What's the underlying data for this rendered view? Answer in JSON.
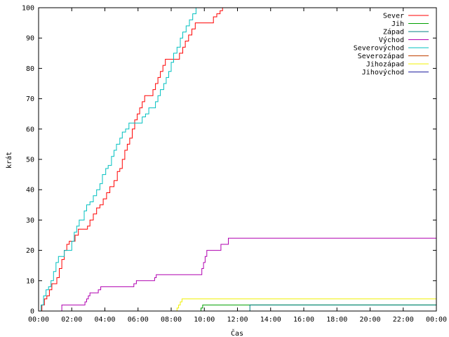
{
  "chart_data": {
    "type": "line",
    "xlabel": "Čas",
    "ylabel": "krát",
    "xlim": [
      0,
      24
    ],
    "ylim": [
      0,
      100
    ],
    "xticks": [
      {
        "value": 0,
        "label": "00:00"
      },
      {
        "value": 2,
        "label": "02:00"
      },
      {
        "value": 4,
        "label": "04:00"
      },
      {
        "value": 6,
        "label": "06:00"
      },
      {
        "value": 8,
        "label": "08:00"
      },
      {
        "value": 10,
        "label": "10:00"
      },
      {
        "value": 12,
        "label": "12:00"
      },
      {
        "value": 14,
        "label": "14:00"
      },
      {
        "value": 16,
        "label": "16:00"
      },
      {
        "value": 18,
        "label": "18:00"
      },
      {
        "value": 20,
        "label": "20:00"
      },
      {
        "value": 22,
        "label": "22:00"
      },
      {
        "value": 24,
        "label": "00:00"
      }
    ],
    "yticks": [
      {
        "value": 0,
        "label": "0"
      },
      {
        "value": 10,
        "label": "10"
      },
      {
        "value": 20,
        "label": "20"
      },
      {
        "value": 30,
        "label": "30"
      },
      {
        "value": 40,
        "label": "40"
      },
      {
        "value": 50,
        "label": "50"
      },
      {
        "value": 60,
        "label": "60"
      },
      {
        "value": 70,
        "label": "70"
      },
      {
        "value": 80,
        "label": "80"
      },
      {
        "value": 90,
        "label": "90"
      },
      {
        "value": 100,
        "label": "100"
      }
    ],
    "grid": false,
    "legend": "top-right",
    "step": true,
    "series": [
      {
        "name": "Sever",
        "color": "#ff0000",
        "points": [
          [
            0,
            0
          ],
          [
            0.2,
            2
          ],
          [
            0.35,
            4
          ],
          [
            0.5,
            5
          ],
          [
            0.65,
            7
          ],
          [
            0.8,
            9
          ],
          [
            0.95,
            9
          ],
          [
            1.1,
            11
          ],
          [
            1.25,
            14
          ],
          [
            1.4,
            17
          ],
          [
            1.55,
            20
          ],
          [
            1.7,
            22
          ],
          [
            1.85,
            23
          ],
          [
            2.0,
            23
          ],
          [
            2.2,
            25
          ],
          [
            2.4,
            27
          ],
          [
            2.7,
            27
          ],
          [
            2.95,
            28
          ],
          [
            3.1,
            30
          ],
          [
            3.3,
            32
          ],
          [
            3.5,
            34
          ],
          [
            3.7,
            35
          ],
          [
            3.9,
            37
          ],
          [
            4.1,
            39
          ],
          [
            4.3,
            41
          ],
          [
            4.55,
            43
          ],
          [
            4.75,
            46
          ],
          [
            4.9,
            47
          ],
          [
            5.05,
            50
          ],
          [
            5.2,
            53
          ],
          [
            5.35,
            55
          ],
          [
            5.5,
            57
          ],
          [
            5.65,
            60
          ],
          [
            5.8,
            63
          ],
          [
            5.95,
            65
          ],
          [
            6.1,
            67
          ],
          [
            6.25,
            69
          ],
          [
            6.4,
            71
          ],
          [
            6.75,
            71
          ],
          [
            6.9,
            73
          ],
          [
            7.05,
            75
          ],
          [
            7.2,
            77
          ],
          [
            7.35,
            79
          ],
          [
            7.5,
            81
          ],
          [
            7.65,
            83
          ],
          [
            7.8,
            83
          ],
          [
            8.0,
            83
          ],
          [
            8.3,
            83
          ],
          [
            8.5,
            85
          ],
          [
            8.7,
            87
          ],
          [
            8.85,
            89
          ],
          [
            9.05,
            91
          ],
          [
            9.25,
            93
          ],
          [
            9.45,
            95
          ],
          [
            9.9,
            95
          ],
          [
            10.4,
            95
          ],
          [
            10.55,
            97
          ],
          [
            10.75,
            98
          ],
          [
            10.95,
            99
          ],
          [
            11.1,
            100
          ],
          [
            11.3,
            100
          ]
        ]
      },
      {
        "name": "Jih",
        "color": "#00a000",
        "points": [
          [
            0,
            0
          ],
          [
            9.75,
            0
          ],
          [
            9.8,
            1
          ],
          [
            9.9,
            2
          ],
          [
            24,
            2
          ]
        ]
      },
      {
        "name": "Západ",
        "color": "#008080",
        "points": [
          [
            0,
            0
          ],
          [
            12.7,
            0
          ],
          [
            12.75,
            2
          ],
          [
            24,
            2
          ]
        ]
      },
      {
        "name": "Východ",
        "color": "#b000b0",
        "points": [
          [
            0,
            0
          ],
          [
            1.35,
            0
          ],
          [
            1.4,
            2
          ],
          [
            2.7,
            2
          ],
          [
            2.8,
            3
          ],
          [
            2.9,
            4
          ],
          [
            3.0,
            5
          ],
          [
            3.1,
            6
          ],
          [
            3.5,
            6
          ],
          [
            3.6,
            7
          ],
          [
            3.75,
            8
          ],
          [
            5.6,
            8
          ],
          [
            5.75,
            9
          ],
          [
            5.9,
            10
          ],
          [
            6.9,
            10
          ],
          [
            7.0,
            11
          ],
          [
            7.1,
            12
          ],
          [
            9.75,
            12
          ],
          [
            9.85,
            14
          ],
          [
            9.95,
            16
          ],
          [
            10.05,
            18
          ],
          [
            10.15,
            20
          ],
          [
            10.9,
            20
          ],
          [
            11.0,
            22
          ],
          [
            11.35,
            22
          ],
          [
            11.45,
            24
          ],
          [
            24,
            24
          ]
        ]
      },
      {
        "name": "Severovýchod",
        "color": "#00c0c0",
        "points": [
          [
            0,
            0
          ],
          [
            0.15,
            2
          ],
          [
            0.3,
            5
          ],
          [
            0.45,
            7
          ],
          [
            0.6,
            8
          ],
          [
            0.75,
            10
          ],
          [
            0.9,
            13
          ],
          [
            1.05,
            16
          ],
          [
            1.2,
            18
          ],
          [
            1.4,
            18
          ],
          [
            1.55,
            20
          ],
          [
            1.85,
            20
          ],
          [
            2.0,
            23
          ],
          [
            2.15,
            26
          ],
          [
            2.3,
            28
          ],
          [
            2.45,
            30
          ],
          [
            2.6,
            30
          ],
          [
            2.75,
            33
          ],
          [
            2.9,
            35
          ],
          [
            3.1,
            36
          ],
          [
            3.3,
            38
          ],
          [
            3.5,
            40
          ],
          [
            3.7,
            42
          ],
          [
            3.85,
            45
          ],
          [
            4.05,
            47
          ],
          [
            4.2,
            48
          ],
          [
            4.4,
            51
          ],
          [
            4.55,
            53
          ],
          [
            4.7,
            55
          ],
          [
            4.9,
            57
          ],
          [
            5.05,
            59
          ],
          [
            5.25,
            60
          ],
          [
            5.45,
            62
          ],
          [
            5.9,
            62
          ],
          [
            6.1,
            62
          ],
          [
            6.25,
            64
          ],
          [
            6.45,
            65
          ],
          [
            6.65,
            67
          ],
          [
            6.9,
            67
          ],
          [
            7.05,
            69
          ],
          [
            7.2,
            71
          ],
          [
            7.35,
            73
          ],
          [
            7.55,
            75
          ],
          [
            7.7,
            77
          ],
          [
            7.85,
            79
          ],
          [
            8.0,
            82
          ],
          [
            8.15,
            85
          ],
          [
            8.35,
            87
          ],
          [
            8.55,
            90
          ],
          [
            8.7,
            92
          ],
          [
            8.9,
            94
          ],
          [
            9.1,
            96
          ],
          [
            9.3,
            98
          ],
          [
            9.5,
            100
          ]
        ]
      },
      {
        "name": "Severozápad",
        "color": "#c04000",
        "points": []
      },
      {
        "name": "Jihozápad",
        "color": "#f0f000",
        "points": [
          [
            0,
            0
          ],
          [
            8.3,
            0
          ],
          [
            8.35,
            1
          ],
          [
            8.45,
            2
          ],
          [
            8.55,
            3
          ],
          [
            8.65,
            4
          ],
          [
            24,
            4
          ]
        ]
      },
      {
        "name": "Jihovýchod",
        "color": "#2020a0",
        "points": []
      }
    ]
  }
}
